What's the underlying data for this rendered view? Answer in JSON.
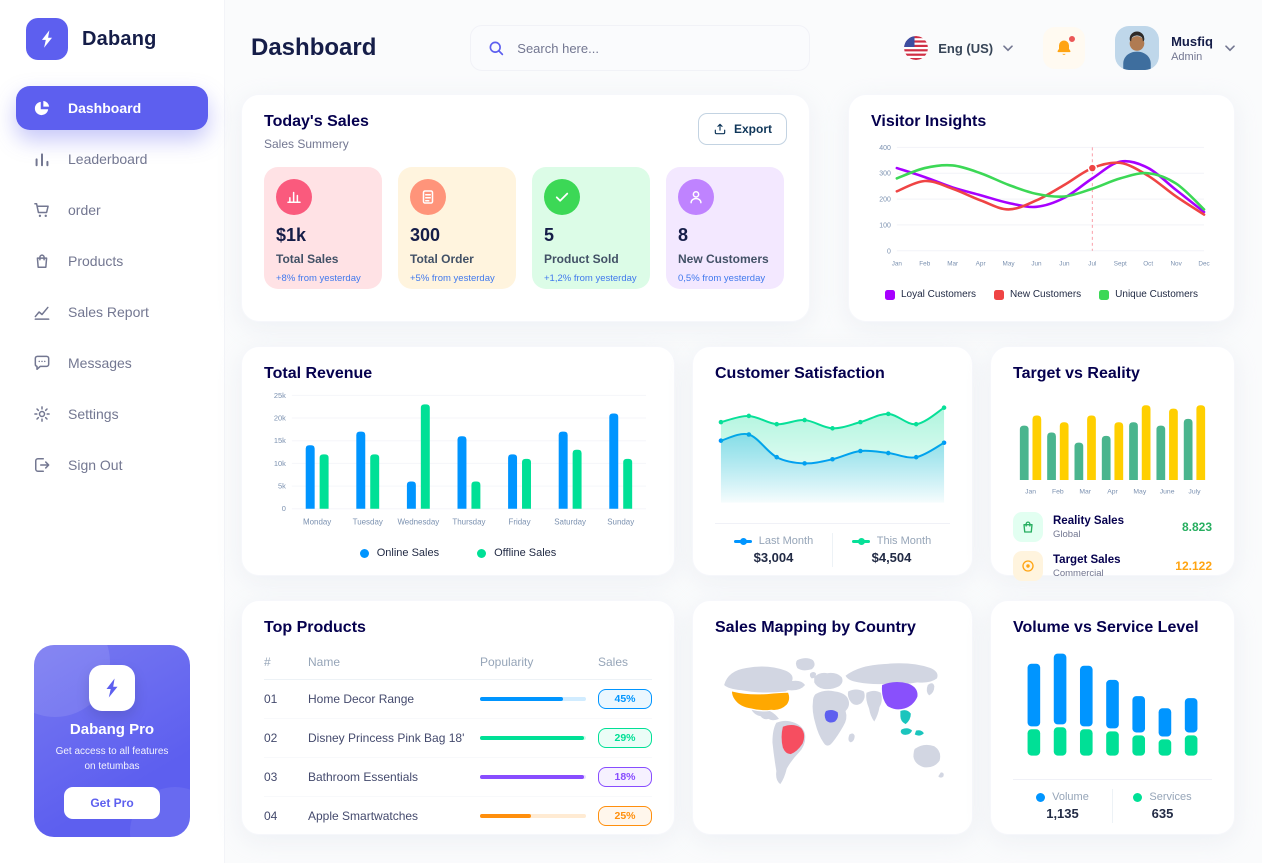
{
  "colors": {
    "primary": "#5D5FEF",
    "map": {
      "base": "#D2D6E2",
      "us": "#FFA800",
      "brazil": "#F64E60",
      "china": "#8950FC",
      "seasia": "#1BC5BD",
      "africa_blue": "#5D5FEF"
    }
  },
  "sidebar": {
    "logo_text": "Dabang",
    "items": [
      {
        "label": "Dashboard"
      },
      {
        "label": "Leaderboard"
      },
      {
        "label": "order"
      },
      {
        "label": "Products"
      },
      {
        "label": "Sales Report"
      },
      {
        "label": "Messages"
      },
      {
        "label": "Settings"
      },
      {
        "label": "Sign Out"
      }
    ],
    "pro": {
      "title": "Dabang Pro",
      "subtitle": "Get access to all features on tetumbas",
      "button": "Get Pro"
    }
  },
  "header": {
    "title": "Dashboard",
    "search_placeholder": "Search here...",
    "language": "Eng (US)",
    "user_name": "Musfiq",
    "user_role": "Admin"
  },
  "todays_sales": {
    "title": "Today's Sales",
    "subtitle": "Sales Summery",
    "export_label": "Export",
    "stats": [
      {
        "value": "$1k",
        "label": "Total Sales",
        "delta": "+8% from yesterday",
        "bg": "#FFE2E5",
        "icon_bg": "#FA5A7D"
      },
      {
        "value": "300",
        "label": "Total Order",
        "delta": "+5% from yesterday",
        "bg": "#FFF4DE",
        "icon_bg": "#FF947A"
      },
      {
        "value": "5",
        "label": "Product Sold",
        "delta": "+1,2% from yesterday",
        "bg": "#DCFCE7",
        "icon_bg": "#3CD856"
      },
      {
        "value": "8",
        "label": "New Customers",
        "delta": "0,5% from yesterday",
        "bg": "#F3E8FF",
        "icon_bg": "#BF83FF"
      }
    ]
  },
  "charts": {
    "visitor_insights": {
      "title": "Visitor Insights",
      "type": "line",
      "months": [
        "Jan",
        "Feb",
        "Mar",
        "Apr",
        "May",
        "Jun",
        "Jun",
        "Jul",
        "Sept",
        "Oct",
        "Nov",
        "Dec"
      ],
      "ylim": [
        0,
        400
      ],
      "yticks": [
        0,
        100,
        200,
        300,
        400
      ],
      "marker_index": 7,
      "series": [
        {
          "name": "Loyal Customers",
          "color": "#A700FF",
          "values": [
            320,
            285,
            245,
            215,
            185,
            170,
            205,
            280,
            345,
            320,
            235,
            150
          ]
        },
        {
          "name": "New Customers",
          "color": "#EF4444",
          "values": [
            230,
            270,
            240,
            195,
            160,
            195,
            255,
            320,
            340,
            290,
            210,
            140
          ]
        },
        {
          "name": "Unique Customers",
          "color": "#3CD856",
          "values": [
            280,
            320,
            330,
            300,
            255,
            220,
            210,
            240,
            280,
            300,
            260,
            160
          ]
        }
      ]
    },
    "total_revenue": {
      "title": "Total Revenue",
      "type": "bar",
      "categories": [
        "Monday",
        "Tuesday",
        "Wednesday",
        "Thursday",
        "Friday",
        "Saturday",
        "Sunday"
      ],
      "ymax": 25,
      "yticks_labels": [
        "0",
        "5k",
        "10k",
        "15k",
        "20k",
        "25k"
      ],
      "series": [
        {
          "name": "Online Sales",
          "color": "#0095FF",
          "values": [
            14,
            17,
            6,
            16,
            12,
            17,
            21
          ]
        },
        {
          "name": "Offline Sales",
          "color": "#00E096",
          "values": [
            12,
            12,
            23,
            6,
            11,
            13,
            11
          ]
        }
      ]
    },
    "customer_satisfaction": {
      "title": "Customer Satisfaction",
      "type": "area",
      "ylim": [
        0,
        100
      ],
      "series": [
        {
          "name": "Last Month",
          "total": "$3,004",
          "color": "#0095FF",
          "values": [
            60,
            66,
            44,
            38,
            42,
            50,
            48,
            44,
            58
          ]
        },
        {
          "name": "This Month",
          "total": "$4,504",
          "color": "#07E098",
          "values": [
            78,
            84,
            76,
            80,
            72,
            78,
            86,
            76,
            92
          ]
        }
      ]
    },
    "target_vs_reality": {
      "title": "Target vs Reality",
      "type": "bar",
      "categories": [
        "Jan",
        "Feb",
        "Mar",
        "Apr",
        "May",
        "June",
        "July"
      ],
      "ymax": 12,
      "series": [
        {
          "name": "Reality Sales",
          "color": "#4AB58E",
          "values": [
            8,
            7,
            5.5,
            6.5,
            8.5,
            8,
            9
          ]
        },
        {
          "name": "Target Sales",
          "color": "#FFCF00",
          "values": [
            9.5,
            8.5,
            9.5,
            8.5,
            11,
            10.5,
            11
          ]
        }
      ],
      "legend": [
        {
          "name": "Reality Sales",
          "tag": "Global",
          "value": "8.823",
          "value_color": "#27AE60"
        },
        {
          "name": "Target Sales",
          "tag": "Commercial",
          "value": "12.122",
          "value_color": "#FFA412"
        }
      ]
    },
    "volume_service": {
      "title": "Volume vs Service Level",
      "type": "stacked-bar",
      "series": [
        {
          "name": "Volume",
          "total": "1,135",
          "color": "#0095FF",
          "values": [
            62,
            70,
            60,
            48,
            36,
            28,
            34
          ]
        },
        {
          "name": "Services",
          "total": "635",
          "color": "#00E096",
          "values": [
            26,
            28,
            26,
            24,
            20,
            16,
            20
          ]
        }
      ]
    }
  },
  "top_products": {
    "title": "Top Products",
    "columns": [
      "#",
      "Name",
      "Popularity",
      "Sales"
    ],
    "rows": [
      {
        "id": "01",
        "name": "Home Decor Range",
        "popularity": 78,
        "sales": "45%",
        "color": "#0095FF"
      },
      {
        "id": "02",
        "name": "Disney Princess Pink Bag 18'",
        "popularity": 98,
        "sales": "29%",
        "color": "#00E096"
      },
      {
        "id": "03",
        "name": "Bathroom Essentials",
        "popularity": 98,
        "sales": "18%",
        "color": "#884DFF"
      },
      {
        "id": "04",
        "name": "Apple Smartwatches",
        "popularity": 48,
        "sales": "25%",
        "color": "#FF8F0D"
      }
    ]
  },
  "sales_map": {
    "title": "Sales Mapping by Country"
  }
}
